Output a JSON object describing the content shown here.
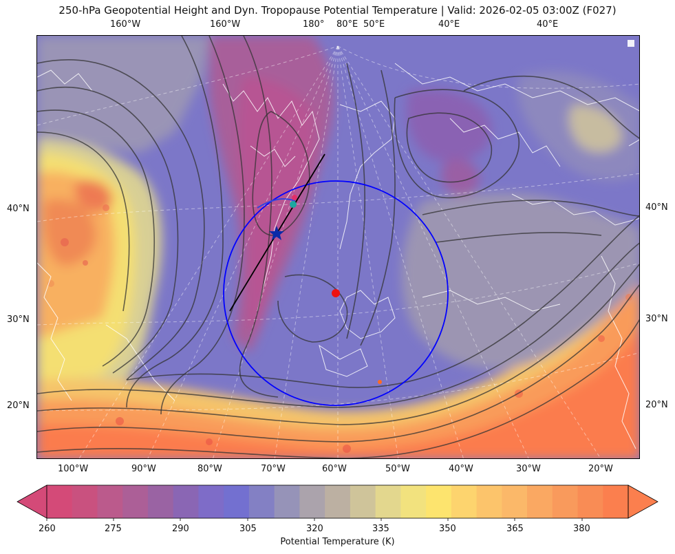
{
  "title": "250-hPa Geopotential Height and Dyn. Tropopause Potential Temperature   |  Valid: 2026-02-05 03:00Z (F027)",
  "top_lon_labels": [
    "160°W",
    "160°W",
    "180°",
    "80°E",
    "50°E",
    "40°E",
    "40°E"
  ],
  "bottom_lon_labels": [
    "100°W",
    "90°W",
    "80°W",
    "70°W",
    "60°W",
    "50°W",
    "40°W",
    "30°W",
    "20°W"
  ],
  "left_lat_labels": [
    "40°N",
    "30°N",
    "20°N"
  ],
  "right_lat_labels": [
    "40°N",
    "30°N",
    "20°N"
  ],
  "colorbar": {
    "title": "Potential Temperature (K)",
    "ticks": [
      "260",
      "275",
      "290",
      "305",
      "320",
      "335",
      "350",
      "365",
      "380"
    ],
    "colors": [
      "#d44a78",
      "#c9517f",
      "#bb5a8c",
      "#ac5f97",
      "#9a63a3",
      "#8a66b4",
      "#7e6cc8",
      "#7370d0",
      "#8380c4",
      "#9693b8",
      "#aba3ac",
      "#bcb0a2",
      "#cfc49a",
      "#e3d78e",
      "#f2e27e",
      "#fde46e",
      "#fdd46e",
      "#fcc46b",
      "#fbb869",
      "#faa862",
      "#f99a5c",
      "#f98c55",
      "#fb7f4e"
    ]
  },
  "markers": {
    "ring_color": "#0000ff",
    "center_dot_color": "#ee1111",
    "star_color": "#0a2aa8",
    "teal_dot_color": "#1aa8a0",
    "pink_dot_color": "#e0306a",
    "cross_section_color": "#000000"
  }
}
